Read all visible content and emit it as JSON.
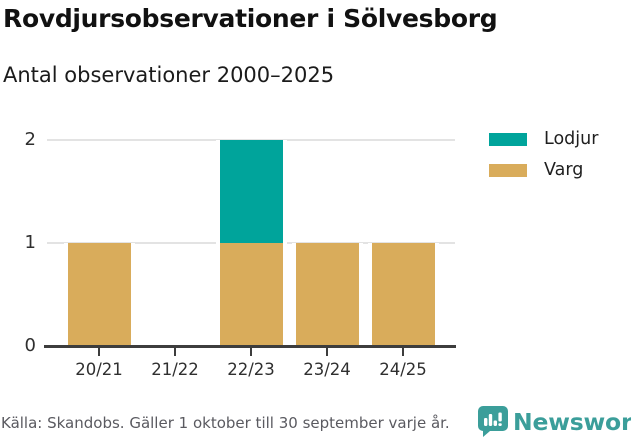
{
  "header": {
    "title": "Rovdjursobservationer i Sölvesborg",
    "subtitle": "Antal observationer 2000–2025"
  },
  "chart_data": {
    "type": "bar",
    "stacked": true,
    "title": "Rovdjursobservationer i Sölvesborg",
    "subtitle": "Antal observationer 2000–2025",
    "categories": [
      "20/21",
      "21/22",
      "22/23",
      "23/24",
      "24/25"
    ],
    "series": [
      {
        "name": "Lodjur",
        "color": "#00a49b",
        "values": [
          0,
          0,
          1,
          0,
          0
        ]
      },
      {
        "name": "Varg",
        "color": "#d9ac5b",
        "values": [
          1,
          0,
          1,
          1,
          1
        ]
      }
    ],
    "stack_bottom_to_top": [
      "Varg",
      "Lodjur"
    ],
    "xlabel": "",
    "ylabel": "",
    "yticks": [
      0,
      1,
      2
    ],
    "ylim": [
      0,
      2
    ],
    "grid": true,
    "legend_position": "right"
  },
  "footer": {
    "source": "Källa: Skandobs. Gäller 1 oktober till 30 september varje år.",
    "brand": "Newsworthy"
  }
}
